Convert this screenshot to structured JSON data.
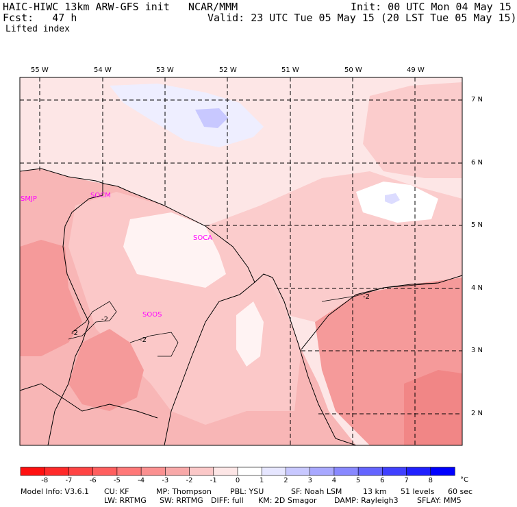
{
  "header": {
    "model_title": "HAIC-HIWC 13km ARW-GFS init   NCAR/MMM",
    "init_time": "Init: 00 UTC Mon 04 May 15",
    "forecast_label": "Fcst:   47 h",
    "valid_time": "Valid: 23 UTC Tue 05 May 15 (20 LST Tue 05 May 15)",
    "field_name": "Lifted index"
  },
  "map": {
    "lon_labels": [
      "55 W",
      "54 W",
      "53 W",
      "52 W",
      "51 W",
      "50 W",
      "49 W"
    ],
    "lat_labels": [
      "7 N",
      "6 N",
      "5 N",
      "4 N",
      "3 N",
      "2 N"
    ],
    "station_labels": [
      "SMJP",
      "SOCM",
      "SOCA",
      "SOOS"
    ],
    "contour_labels": [
      "-2",
      "-2",
      "-2",
      "-2"
    ],
    "land_color": "#f7b5b5",
    "ocean_color": "#fde6e6",
    "coast_color": "#000000"
  },
  "colorbar": {
    "tick_labels": [
      "-8",
      "-7",
      "-6",
      "-5",
      "-4",
      "-3",
      "-2",
      "-1",
      "0",
      "1",
      "2",
      "3",
      "4",
      "5",
      "6",
      "7",
      "8"
    ],
    "unit": "°C",
    "colors": [
      "#ff1010",
      "#ff2a2a",
      "#ff4444",
      "#ff5e5e",
      "#ff7878",
      "#fb9090",
      "#f8a8a8",
      "#fbc8c8",
      "#fde6e6",
      "#ffffff",
      "#e6e6ff",
      "#c8c8ff",
      "#a8a8ff",
      "#8888ff",
      "#6464ff",
      "#4040ff",
      "#2020ff",
      "#0000ff"
    ]
  },
  "footer": {
    "line1": [
      "Model Info: V3.6.1",
      "CU: KF",
      "MP: Thompson",
      "PBL: YSU",
      "SF: Noah LSM",
      "13 km",
      "51 levels",
      "60 sec"
    ],
    "line2": [
      "LW: RRTMG",
      "SW: RRTMG",
      "DIFF: full",
      "KM: 2D Smagor",
      "DAMP: Rayleigh3",
      "SFLAY: MM5"
    ]
  }
}
